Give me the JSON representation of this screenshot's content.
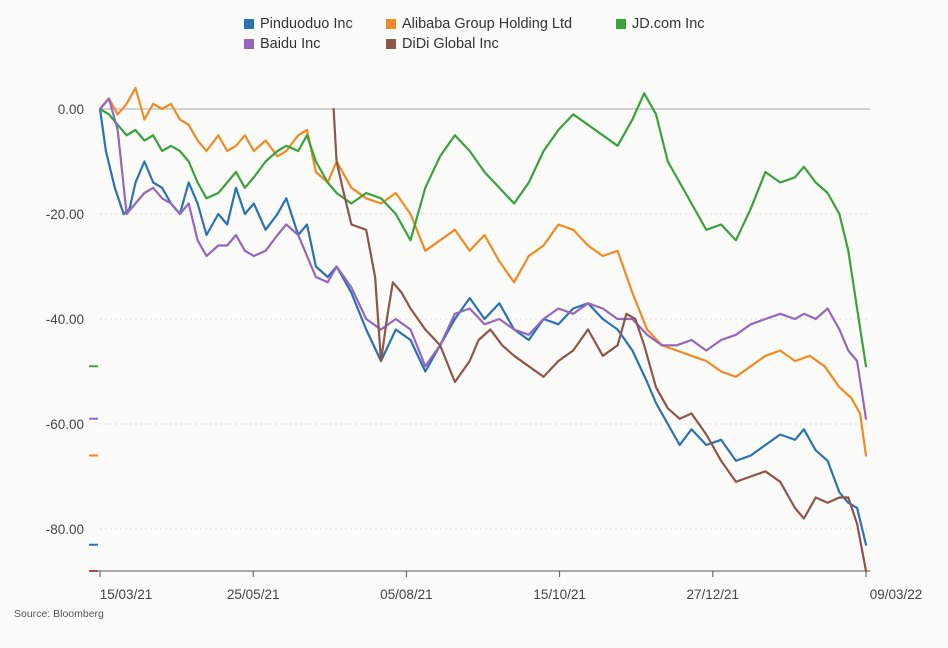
{
  "source": "Source: Bloomberg",
  "chart_data": {
    "type": "line",
    "title": "",
    "xlabel": "",
    "ylabel": "",
    "x_ticks": [
      "15/03/21",
      "25/05/21",
      "05/08/21",
      "15/10/21",
      "27/12/21",
      "09/03/22"
    ],
    "ylim": [
      -88,
      10
    ],
    "y_ticks": [
      0,
      -20,
      -40,
      -60,
      -80
    ],
    "y_tick_labels": [
      "0.00",
      "-20.00",
      "-40.00",
      "-60.00",
      "-80.00"
    ],
    "grid": true,
    "legend_position": "top",
    "series": [
      {
        "name": "Pinduoduo Inc",
        "color": "#2b72b0",
        "points": [
          [
            0,
            0
          ],
          [
            2,
            -8
          ],
          [
            5,
            -15
          ],
          [
            8,
            -20
          ],
          [
            10,
            -19
          ],
          [
            12,
            -14
          ],
          [
            15,
            -10
          ],
          [
            18,
            -14
          ],
          [
            21,
            -15
          ],
          [
            24,
            -18
          ],
          [
            27,
            -20
          ],
          [
            30,
            -14
          ],
          [
            33,
            -18
          ],
          [
            36,
            -24
          ],
          [
            40,
            -20
          ],
          [
            43,
            -22
          ],
          [
            46,
            -15
          ],
          [
            49,
            -20
          ],
          [
            52,
            -18
          ],
          [
            56,
            -23
          ],
          [
            60,
            -20
          ],
          [
            63,
            -17
          ],
          [
            67,
            -24
          ],
          [
            70,
            -22
          ],
          [
            73,
            -30
          ],
          [
            77,
            -32
          ],
          [
            80,
            -30
          ],
          [
            85,
            -35
          ],
          [
            90,
            -42
          ],
          [
            95,
            -48
          ],
          [
            100,
            -42
          ],
          [
            105,
            -44
          ],
          [
            110,
            -50
          ],
          [
            115,
            -45
          ],
          [
            120,
            -40
          ],
          [
            125,
            -36
          ],
          [
            130,
            -40
          ],
          [
            135,
            -37
          ],
          [
            140,
            -42
          ],
          [
            145,
            -44
          ],
          [
            150,
            -40
          ],
          [
            155,
            -41
          ],
          [
            160,
            -38
          ],
          [
            165,
            -37
          ],
          [
            170,
            -40
          ],
          [
            175,
            -42
          ],
          [
            180,
            -46
          ],
          [
            185,
            -52
          ],
          [
            188,
            -56
          ],
          [
            192,
            -60
          ],
          [
            196,
            -64
          ],
          [
            200,
            -61
          ],
          [
            205,
            -64
          ],
          [
            210,
            -63
          ],
          [
            215,
            -67
          ],
          [
            220,
            -66
          ],
          [
            225,
            -64
          ],
          [
            230,
            -62
          ],
          [
            235,
            -63
          ],
          [
            238,
            -61
          ],
          [
            242,
            -65
          ],
          [
            246,
            -67
          ],
          [
            250,
            -73
          ],
          [
            253,
            -75
          ],
          [
            256,
            -76
          ],
          [
            259,
            -83
          ]
        ]
      },
      {
        "name": "Alibaba Group Holding Ltd",
        "color": "#f28a22",
        "points": [
          [
            0,
            0
          ],
          [
            3,
            2
          ],
          [
            6,
            -1
          ],
          [
            9,
            1
          ],
          [
            12,
            4
          ],
          [
            15,
            -2
          ],
          [
            18,
            1
          ],
          [
            21,
            0
          ],
          [
            24,
            1
          ],
          [
            27,
            -2
          ],
          [
            30,
            -3
          ],
          [
            33,
            -6
          ],
          [
            36,
            -8
          ],
          [
            40,
            -5
          ],
          [
            43,
            -8
          ],
          [
            46,
            -7
          ],
          [
            49,
            -5
          ],
          [
            52,
            -8
          ],
          [
            56,
            -6
          ],
          [
            60,
            -9
          ],
          [
            63,
            -8
          ],
          [
            67,
            -5
          ],
          [
            70,
            -4
          ],
          [
            73,
            -12
          ],
          [
            77,
            -14
          ],
          [
            80,
            -10
          ],
          [
            85,
            -15
          ],
          [
            90,
            -17
          ],
          [
            95,
            -18
          ],
          [
            100,
            -16
          ],
          [
            105,
            -20
          ],
          [
            110,
            -27
          ],
          [
            115,
            -25
          ],
          [
            120,
            -23
          ],
          [
            125,
            -27
          ],
          [
            130,
            -24
          ],
          [
            135,
            -29
          ],
          [
            140,
            -33
          ],
          [
            145,
            -28
          ],
          [
            150,
            -26
          ],
          [
            155,
            -22
          ],
          [
            160,
            -23
          ],
          [
            165,
            -26
          ],
          [
            170,
            -28
          ],
          [
            175,
            -27
          ],
          [
            180,
            -35
          ],
          [
            185,
            -42
          ],
          [
            190,
            -45
          ],
          [
            195,
            -46
          ],
          [
            200,
            -47
          ],
          [
            205,
            -48
          ],
          [
            210,
            -50
          ],
          [
            215,
            -51
          ],
          [
            220,
            -49
          ],
          [
            225,
            -47
          ],
          [
            230,
            -46
          ],
          [
            235,
            -48
          ],
          [
            240,
            -47
          ],
          [
            245,
            -49
          ],
          [
            250,
            -53
          ],
          [
            254,
            -55
          ],
          [
            257,
            -58
          ],
          [
            259,
            -66
          ]
        ]
      },
      {
        "name": "JD.com Inc",
        "color": "#39a23c",
        "points": [
          [
            0,
            0
          ],
          [
            3,
            -1
          ],
          [
            6,
            -3
          ],
          [
            9,
            -5
          ],
          [
            12,
            -4
          ],
          [
            15,
            -6
          ],
          [
            18,
            -5
          ],
          [
            21,
            -8
          ],
          [
            24,
            -7
          ],
          [
            27,
            -8
          ],
          [
            30,
            -10
          ],
          [
            33,
            -14
          ],
          [
            36,
            -17
          ],
          [
            40,
            -16
          ],
          [
            43,
            -14
          ],
          [
            46,
            -12
          ],
          [
            49,
            -15
          ],
          [
            52,
            -13
          ],
          [
            56,
            -10
          ],
          [
            60,
            -8
          ],
          [
            63,
            -7
          ],
          [
            67,
            -8
          ],
          [
            70,
            -5
          ],
          [
            73,
            -10
          ],
          [
            77,
            -14
          ],
          [
            80,
            -16
          ],
          [
            85,
            -18
          ],
          [
            90,
            -16
          ],
          [
            95,
            -17
          ],
          [
            100,
            -20
          ],
          [
            105,
            -25
          ],
          [
            110,
            -15
          ],
          [
            115,
            -9
          ],
          [
            120,
            -5
          ],
          [
            125,
            -8
          ],
          [
            130,
            -12
          ],
          [
            135,
            -15
          ],
          [
            140,
            -18
          ],
          [
            145,
            -14
          ],
          [
            150,
            -8
          ],
          [
            155,
            -4
          ],
          [
            160,
            -1
          ],
          [
            165,
            -3
          ],
          [
            170,
            -5
          ],
          [
            175,
            -7
          ],
          [
            180,
            -2
          ],
          [
            184,
            3
          ],
          [
            188,
            -1
          ],
          [
            192,
            -10
          ],
          [
            196,
            -14
          ],
          [
            200,
            -18
          ],
          [
            205,
            -23
          ],
          [
            210,
            -22
          ],
          [
            215,
            -25
          ],
          [
            220,
            -19
          ],
          [
            225,
            -12
          ],
          [
            230,
            -14
          ],
          [
            235,
            -13
          ],
          [
            238,
            -11
          ],
          [
            242,
            -14
          ],
          [
            246,
            -16
          ],
          [
            250,
            -20
          ],
          [
            253,
            -27
          ],
          [
            256,
            -38
          ],
          [
            259,
            -49
          ]
        ]
      },
      {
        "name": "Baidu Inc",
        "color": "#9467bd",
        "points": [
          [
            0,
            0
          ],
          [
            3,
            2
          ],
          [
            6,
            -4
          ],
          [
            9,
            -20
          ],
          [
            12,
            -18
          ],
          [
            15,
            -16
          ],
          [
            18,
            -15
          ],
          [
            21,
            -17
          ],
          [
            24,
            -18
          ],
          [
            27,
            -20
          ],
          [
            30,
            -18
          ],
          [
            33,
            -25
          ],
          [
            36,
            -28
          ],
          [
            40,
            -26
          ],
          [
            43,
            -26
          ],
          [
            46,
            -24
          ],
          [
            49,
            -27
          ],
          [
            52,
            -28
          ],
          [
            56,
            -27
          ],
          [
            60,
            -24
          ],
          [
            63,
            -22
          ],
          [
            67,
            -24
          ],
          [
            70,
            -28
          ],
          [
            73,
            -32
          ],
          [
            77,
            -33
          ],
          [
            80,
            -30
          ],
          [
            85,
            -34
          ],
          [
            90,
            -40
          ],
          [
            95,
            -42
          ],
          [
            100,
            -40
          ],
          [
            105,
            -42
          ],
          [
            110,
            -49
          ],
          [
            115,
            -45
          ],
          [
            120,
            -39
          ],
          [
            125,
            -38
          ],
          [
            130,
            -41
          ],
          [
            135,
            -40
          ],
          [
            140,
            -42
          ],
          [
            145,
            -43
          ],
          [
            150,
            -40
          ],
          [
            155,
            -38
          ],
          [
            160,
            -39
          ],
          [
            165,
            -37
          ],
          [
            170,
            -38
          ],
          [
            175,
            -40
          ],
          [
            180,
            -40
          ],
          [
            185,
            -43
          ],
          [
            190,
            -45
          ],
          [
            195,
            -45
          ],
          [
            200,
            -44
          ],
          [
            205,
            -46
          ],
          [
            210,
            -44
          ],
          [
            215,
            -43
          ],
          [
            220,
            -41
          ],
          [
            225,
            -40
          ],
          [
            230,
            -39
          ],
          [
            235,
            -40
          ],
          [
            238,
            -39
          ],
          [
            242,
            -40
          ],
          [
            246,
            -38
          ],
          [
            250,
            -42
          ],
          [
            253,
            -46
          ],
          [
            256,
            -48
          ],
          [
            259,
            -59
          ]
        ]
      },
      {
        "name": "DiDi Global Inc",
        "color": "#8c564b",
        "points": [
          [
            79,
            0
          ],
          [
            80,
            -10
          ],
          [
            82,
            -15
          ],
          [
            85,
            -22
          ],
          [
            90,
            -23
          ],
          [
            93,
            -32
          ],
          [
            95,
            -48
          ],
          [
            97,
            -40
          ],
          [
            99,
            -33
          ],
          [
            102,
            -35
          ],
          [
            105,
            -38
          ],
          [
            110,
            -42
          ],
          [
            115,
            -45
          ],
          [
            120,
            -52
          ],
          [
            125,
            -48
          ],
          [
            128,
            -44
          ],
          [
            132,
            -42
          ],
          [
            136,
            -45
          ],
          [
            140,
            -47
          ],
          [
            145,
            -49
          ],
          [
            150,
            -51
          ],
          [
            155,
            -48
          ],
          [
            160,
            -46
          ],
          [
            165,
            -42
          ],
          [
            170,
            -47
          ],
          [
            175,
            -45
          ],
          [
            178,
            -39
          ],
          [
            181,
            -40
          ],
          [
            184,
            -45
          ],
          [
            188,
            -53
          ],
          [
            192,
            -57
          ],
          [
            196,
            -59
          ],
          [
            200,
            -58
          ],
          [
            205,
            -62
          ],
          [
            210,
            -67
          ],
          [
            215,
            -71
          ],
          [
            220,
            -70
          ],
          [
            225,
            -69
          ],
          [
            230,
            -71
          ],
          [
            235,
            -76
          ],
          [
            238,
            -78
          ],
          [
            242,
            -74
          ],
          [
            246,
            -75
          ],
          [
            250,
            -74
          ],
          [
            253,
            -74
          ],
          [
            256,
            -79
          ],
          [
            259,
            -88
          ]
        ]
      }
    ]
  }
}
